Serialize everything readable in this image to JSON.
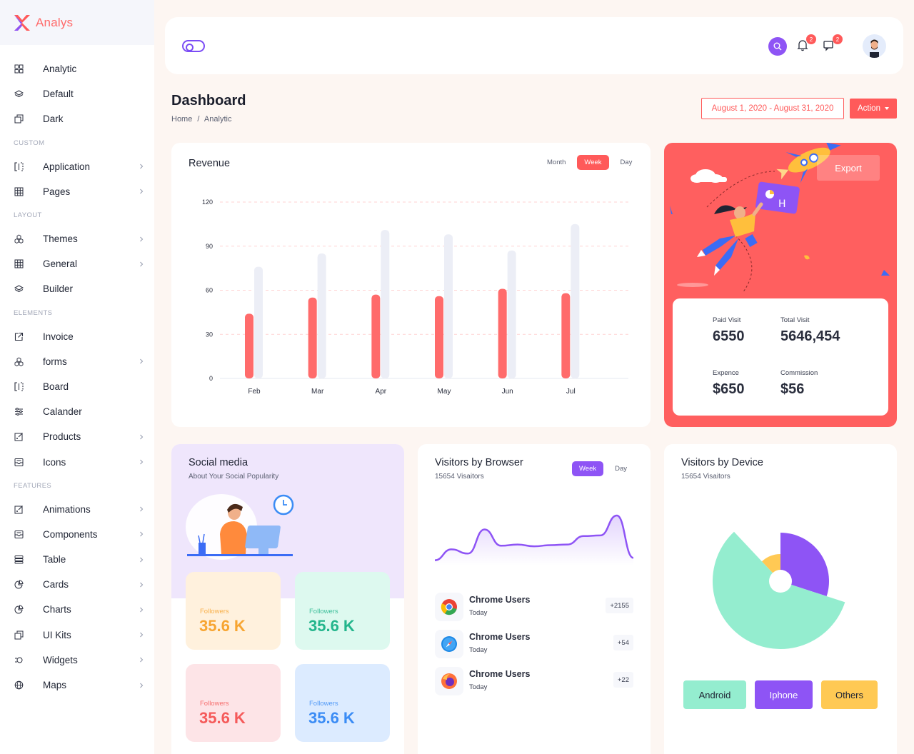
{
  "brand": {
    "name": "Analys"
  },
  "sidebar": {
    "groups": [
      {
        "section": "",
        "items": [
          {
            "label": "Analytic",
            "icon": "grid-icon",
            "chevron": false
          },
          {
            "label": "Default",
            "icon": "layers-icon",
            "chevron": false
          },
          {
            "label": "Dark",
            "icon": "copy-icon",
            "chevron": false
          }
        ]
      },
      {
        "section": "CUSTOM",
        "items": [
          {
            "label": "Application",
            "icon": "bracket-icon",
            "chevron": true
          },
          {
            "label": "Pages",
            "icon": "table-grid-icon",
            "chevron": true
          }
        ]
      },
      {
        "section": "LAYOUT",
        "items": [
          {
            "label": "Themes",
            "icon": "cubes-icon",
            "chevron": true
          },
          {
            "label": "General",
            "icon": "table-grid-icon",
            "chevron": true
          },
          {
            "label": "Builder",
            "icon": "layers-icon",
            "chevron": false
          }
        ]
      },
      {
        "section": "ELEMENTS",
        "items": [
          {
            "label": "Invoice",
            "icon": "external-link-icon",
            "chevron": false
          },
          {
            "label": "forms",
            "icon": "cubes-icon",
            "chevron": true
          },
          {
            "label": "Board",
            "icon": "bracket-icon",
            "chevron": false
          },
          {
            "label": "Calander",
            "icon": "sliders-icon",
            "chevron": false
          },
          {
            "label": "Products",
            "icon": "edit-box-icon",
            "chevron": true
          },
          {
            "label": "Icons",
            "icon": "inbox-icon",
            "chevron": true
          }
        ]
      },
      {
        "section": "FEATURES",
        "items": [
          {
            "label": "Animations",
            "icon": "edit-box-icon",
            "chevron": true
          },
          {
            "label": "Components",
            "icon": "inbox-icon",
            "chevron": true
          },
          {
            "label": "Table",
            "icon": "list-icon",
            "chevron": true
          },
          {
            "label": "Cards",
            "icon": "pie-icon",
            "chevron": true
          },
          {
            "label": "Charts",
            "icon": "pie-icon",
            "chevron": true
          },
          {
            "label": "UI Kits",
            "icon": "copy-icon",
            "chevron": true
          },
          {
            "label": "Widgets",
            "icon": "widget-icon",
            "chevron": true
          },
          {
            "label": "Maps",
            "icon": "globe-icon",
            "chevron": true
          }
        ]
      }
    ]
  },
  "header": {
    "notifications_count": "2",
    "messages_count": "2"
  },
  "page": {
    "title": "Dashboard",
    "breadcrumb": [
      "Home",
      "/",
      "Analytic"
    ],
    "date_range": "August 1, 2020 - August 31, 2020",
    "action_label": "Action"
  },
  "revenue": {
    "title": "Revenue",
    "tabs": [
      "Month",
      "Week",
      "Day"
    ],
    "active_tab": "Week"
  },
  "export_card": {
    "button_label": "Export",
    "stats": [
      {
        "label": "Paid Visit",
        "value": "6550"
      },
      {
        "label": "Total Visit",
        "value": "5646,454"
      },
      {
        "label": "Expence",
        "value": "$650"
      },
      {
        "label": "Commission",
        "value": "$56"
      }
    ]
  },
  "social": {
    "title": "Social media",
    "subtitle": "About Your Social Popularity",
    "tiles": [
      {
        "label": "Followers",
        "value": "35.6 K",
        "bg": "#fff1dd",
        "color": "#f7a531"
      },
      {
        "label": "Followers",
        "value": "35.6 K",
        "bg": "#ddf9ef",
        "color": "#23b58c"
      },
      {
        "label": "Followers",
        "value": "35.6 K",
        "bg": "#fde4e7",
        "color": "#f55a5a"
      },
      {
        "label": "Followers",
        "value": "35.6 K",
        "bg": "#dcebff",
        "color": "#3b8cf5"
      }
    ]
  },
  "browser": {
    "title": "Visitors by Browser",
    "subtitle": "15654 Visaitors",
    "tabs": [
      "Week",
      "Day"
    ],
    "rows": [
      {
        "name": "Chrome Users",
        "when": "Today",
        "count": "+2155",
        "icon": "chrome-icon"
      },
      {
        "name": "Chrome Users",
        "when": "Today",
        "count": "+54",
        "icon": "safari-icon"
      },
      {
        "name": "Chrome Users",
        "when": "Today",
        "count": "+22",
        "icon": "firefox-icon"
      }
    ]
  },
  "device": {
    "title": "Visitors by Device",
    "subtitle": "15654 Visaitors",
    "buttons": [
      {
        "label": "Android",
        "bg": "#94edcf"
      },
      {
        "label": "Iphone",
        "bg": "#8e54f5",
        "color": "#ffffff"
      },
      {
        "label": "Others",
        "bg": "#ffc954"
      }
    ]
  },
  "chart_data": [
    {
      "type": "bar",
      "categories": [
        "Feb",
        "Mar",
        "Apr",
        "May",
        "Jun",
        "Jul"
      ],
      "series": [
        {
          "values": [
            44,
            55,
            57,
            56,
            61,
            58
          ],
          "color": "#ff6b6b"
        },
        {
          "values": [
            76,
            85,
            101,
            98,
            87,
            105
          ],
          "color": "#eceef6"
        }
      ],
      "yticks": [
        0,
        30,
        60,
        90,
        120
      ],
      "ylim": [
        0,
        120
      ],
      "grid": true
    },
    {
      "type": "area",
      "values": [
        4,
        22,
        15,
        55,
        28,
        30,
        27,
        29,
        30,
        44,
        45,
        78,
        8
      ],
      "color": "#8e54f5",
      "grid": false
    },
    {
      "type": "pie",
      "slices": [
        {
          "label": "Iphone",
          "value": 30,
          "color": "#8e54f5"
        },
        {
          "label": "Android",
          "value": 58,
          "color": "#94edcf"
        },
        {
          "label": "Others",
          "value": 12,
          "color": "#ffc954"
        }
      ]
    }
  ]
}
